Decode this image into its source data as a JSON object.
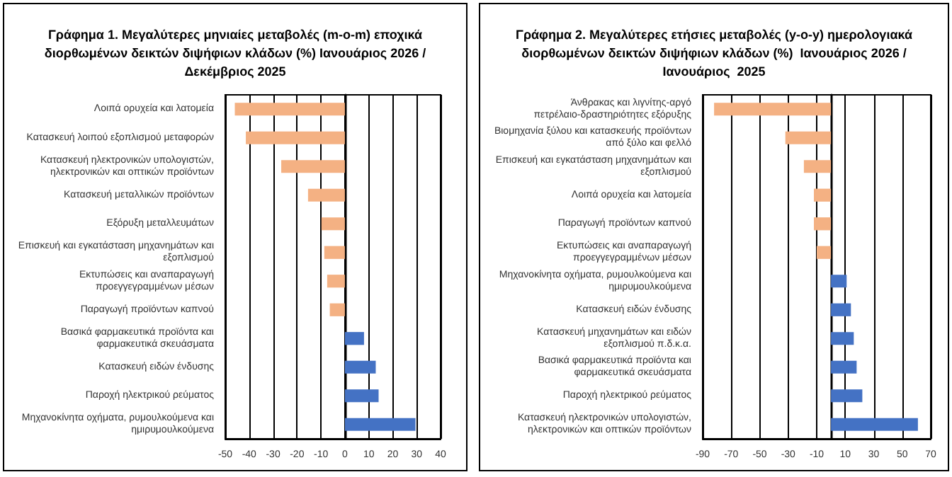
{
  "chart_data": [
    {
      "type": "bar",
      "orientation": "horizontal",
      "title": "Γράφημα 1. Μεγαλύτερες μηνιαίες μεταβολές (m-o-m) εποχικά διορθωμένων δεικτών διψήφιων κλάδων (%) Ιανουάριος 2026 / Δεκέμβριος 2025",
      "categories": [
        "Λοιπά ορυχεία και λατομεία",
        "Κατασκευή λοιπού εξοπλισμού μεταφορών",
        "Κατασκευή ηλεκτρονικών υπολογιστών, ηλεκτρονικών και οπτικών προϊόντων",
        "Κατασκευή μεταλλικών προϊόντων",
        "Εξόρυξη μεταλλευμάτων",
        "Επισκευή και εγκατάσταση μηχανημάτων και εξοπλισμού",
        "Εκτυπώσεις και αναπαραγωγή προεγγεγραμμένων μέσων",
        "Παραγωγή προϊόντων καπνού",
        "Βασικά φαρμακευτικά προϊόντα και φαρμακευτικά σκευάσματα",
        "Κατασκευή ειδών ένδυσης",
        "Παροχή ηλεκτρικού ρεύματος",
        "Μηχανοκίνητα οχήματα, ρυμουλκούμενα και ημιρυμουλκούμενα"
      ],
      "values": [
        -46,
        -41.4,
        -26.6,
        -15.4,
        -9.8,
        -8.6,
        -7.4,
        -6.3,
        8,
        12.9,
        14.1,
        29.5
      ],
      "colors": [
        "#f4b183",
        "#f4b183",
        "#f4b183",
        "#f4b183",
        "#f4b183",
        "#f4b183",
        "#f4b183",
        "#f4b183",
        "#4472c4",
        "#4472c4",
        "#4472c4",
        "#4472c4"
      ],
      "xlim": [
        -50,
        40
      ],
      "xticks": [
        -50,
        -40,
        -30,
        -20,
        -10,
        0,
        10,
        20,
        30,
        40
      ],
      "grid": "x"
    },
    {
      "type": "bar",
      "orientation": "horizontal",
      "title": "Γράφημα 2. Μεγαλύτερες ετήσιες μεταβολές (y-o-y) ημερολογιακά διορθωμένων δεικτών διψήφιων κλάδων (%)  Ιανουάριος 2026 / Ιανουάριος  2025",
      "categories": [
        "Άνθρακας και λιγνίτης-αργό πετρέλαιο-δραστηριότητες εξόρυξης",
        "Βιομηχανία ξύλου και κατασκευής προϊόντων από ξύλο και φελλό",
        "Επισκευή και εγκατάσταση μηχανημάτων και εξοπλισμού",
        "Λοιπά ορυχεία και λατομεία",
        "Παραγωγή προϊόντων καπνού",
        "Εκτυπώσεις και αναπαραγωγή προεγγεγραμμένων μέσων",
        "Μηχανοκίνητα οχήματα, ρυμουλκούμενα και ημιρυμουλκούμενα",
        "Κατασκευή ειδών ένδυσης",
        "Κατασκευή μηχανημάτων και ειδών εξοπλισμού π.δ.κ.α.",
        "Βασικά φαρμακευτικά προϊόντα και φαρμακευτικά σκευάσματα",
        "Παροχή ηλεκτρικού ρεύματος",
        "Κατασκευή ηλεκτρονικών υπολογιστών, ηλεκτρονικών και οπτικών προϊόντων"
      ],
      "values": [
        -82,
        -32,
        -19,
        -12,
        -12,
        -10,
        11,
        14,
        16,
        18,
        22,
        61
      ],
      "colors": [
        "#f4b183",
        "#f4b183",
        "#f4b183",
        "#f4b183",
        "#f4b183",
        "#f4b183",
        "#4472c4",
        "#4472c4",
        "#4472c4",
        "#4472c4",
        "#4472c4",
        "#4472c4"
      ],
      "xlim": [
        -90,
        70
      ],
      "xticks": [
        -90,
        -70,
        -50,
        -30,
        -10,
        10,
        30,
        50,
        70
      ],
      "grid": "x"
    }
  ]
}
